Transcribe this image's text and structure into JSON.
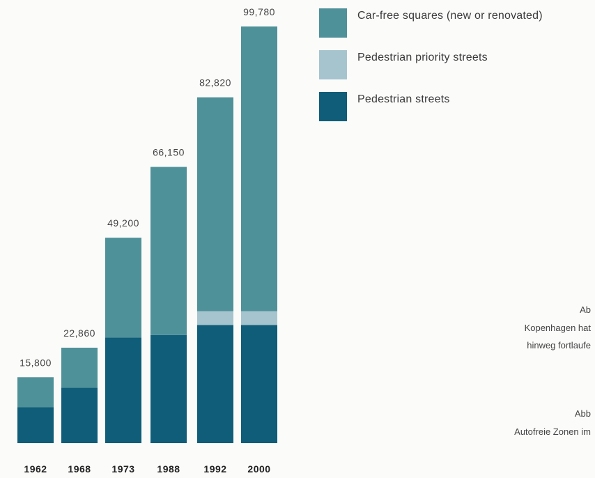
{
  "colors": {
    "squares": "#4f9199",
    "priority": "#a6c4ce",
    "pedestrian": "#0f5d78"
  },
  "legend": {
    "items": [
      {
        "label": "Car-free squares (new or renovated)",
        "color": "#4f9199"
      },
      {
        "label": "Pedestrian priority streets",
        "color": "#a6c4ce"
      },
      {
        "label": "Pedestrian streets",
        "color": "#0f5d78"
      }
    ]
  },
  "captions": {
    "line1": "Ab",
    "line2": "Kopenhagen hat",
    "line3": "hinweg fortlaufe",
    "line4": "Abb",
    "line5": "Autofreie Zonen im"
  },
  "chart_data": {
    "type": "bar",
    "stacked": true,
    "categories": [
      "1962",
      "1968",
      "1973",
      "1988",
      "1992",
      "2000"
    ],
    "totals": [
      "15,800",
      "22,860",
      "49,200",
      "66,150",
      "82,820",
      "99,780"
    ],
    "total_values": [
      15800,
      22860,
      49200,
      66150,
      82820,
      99780
    ],
    "series": [
      {
        "name": "Pedestrian streets",
        "values": [
          8600,
          13300,
          25300,
          25900,
          28300,
          28300
        ]
      },
      {
        "name": "Pedestrian priority streets",
        "values": [
          0,
          0,
          0,
          0,
          3300,
          3300
        ]
      },
      {
        "name": "Car-free squares (new or renovated)",
        "values": [
          7200,
          9560,
          23900,
          40250,
          51220,
          68180
        ]
      }
    ],
    "ylim": [
      0,
      99780
    ],
    "grid": false,
    "legend_position": "top-right"
  }
}
